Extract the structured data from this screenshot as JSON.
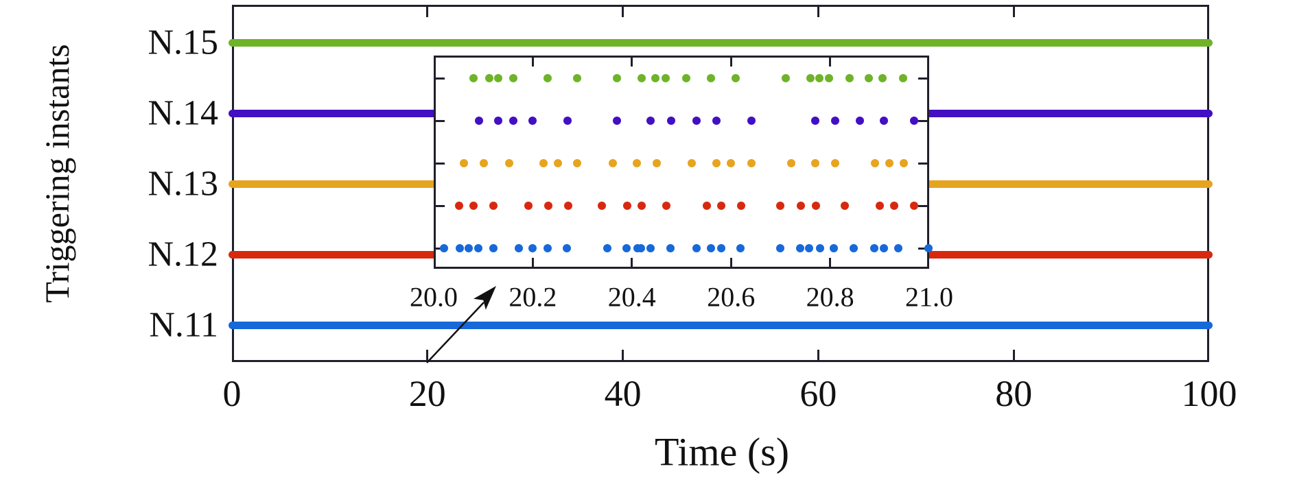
{
  "figure": {
    "background": "#ffffff",
    "axis_color": "#20202c",
    "text_color": "#111111"
  },
  "chart_data": {
    "type": "scatter",
    "title": "",
    "xlabel": "Time (s)",
    "ylabel": "Triggering instants",
    "x_range": [
      0,
      100
    ],
    "x_ticks": [
      0,
      20,
      40,
      60,
      80,
      100
    ],
    "x_tick_labels": [
      "0",
      "20",
      "40",
      "60",
      "80",
      "100"
    ],
    "y_categories": [
      "N.15",
      "N.14",
      "N.13",
      "N.12",
      "N.11"
    ],
    "grid": false,
    "legend": "none",
    "series": [
      {
        "name": "N.15",
        "color": "#6eb32a",
        "span_s": [
          0,
          100
        ],
        "appearance": "instants so dense they render as a solid line"
      },
      {
        "name": "N.14",
        "color": "#430fc3",
        "span_s": [
          0,
          100
        ],
        "appearance": "instants so dense they render as a solid line"
      },
      {
        "name": "N.13",
        "color": "#e7a41f",
        "span_s": [
          0,
          100
        ],
        "appearance": "instants so dense they render as a solid line"
      },
      {
        "name": "N.12",
        "color": "#d8290f",
        "span_s": [
          0,
          100
        ],
        "appearance": "instants so dense they render as a solid line"
      },
      {
        "name": "N.11",
        "color": "#1768d9",
        "span_s": [
          0,
          100
        ],
        "appearance": "instants so dense they render as a solid line"
      }
    ],
    "inset": {
      "x_range": [
        20.0,
        21.0
      ],
      "x_ticks": [
        20.0,
        20.2,
        20.4,
        20.6,
        20.8,
        21.0
      ],
      "x_tick_labels": [
        "20.0",
        "20.2",
        "20.4",
        "20.6",
        "20.8",
        "21.0"
      ],
      "series": [
        {
          "name": "N.15",
          "color": "#6eb32a",
          "instants_s": [
            20.08,
            20.112,
            20.13,
            20.16,
            20.23,
            20.29,
            20.37,
            20.42,
            20.447,
            20.468,
            20.51,
            20.56,
            20.609,
            20.711,
            20.761,
            20.779,
            20.798,
            20.839,
            20.878,
            20.906,
            20.948
          ]
        },
        {
          "name": "N.14",
          "color": "#430fc3",
          "instants_s": [
            20.091,
            20.13,
            20.16,
            20.2,
            20.27,
            20.37,
            20.438,
            20.479,
            20.53,
            20.57,
            20.641,
            20.77,
            20.81,
            20.86,
            20.909,
            20.97
          ]
        },
        {
          "name": "N.13",
          "color": "#e7a41f",
          "instants_s": [
            20.061,
            20.101,
            20.152,
            20.222,
            20.251,
            20.29,
            20.362,
            20.41,
            20.45,
            20.521,
            20.57,
            20.6,
            20.641,
            20.721,
            20.77,
            20.81,
            20.89,
            20.92,
            20.949
          ]
        },
        {
          "name": "N.12",
          "color": "#d8290f",
          "instants_s": [
            20.051,
            20.08,
            20.12,
            20.191,
            20.231,
            20.271,
            20.34,
            20.391,
            20.42,
            20.47,
            20.551,
            20.58,
            20.62,
            20.7,
            20.741,
            20.771,
            20.83,
            20.9,
            20.93,
            20.97
          ]
        },
        {
          "name": "N.11",
          "color": "#1768d9",
          "instants_s": [
            20.021,
            20.052,
            20.071,
            20.09,
            20.121,
            20.172,
            20.2,
            20.23,
            20.269,
            20.351,
            20.389,
            20.411,
            20.418,
            20.438,
            20.478,
            20.53,
            20.56,
            20.58,
            20.619,
            20.7,
            20.74,
            20.757,
            20.78,
            20.808,
            20.848,
            20.889,
            20.909,
            20.938,
            20.998
          ]
        }
      ]
    },
    "annotation": {
      "arrow_from": "x-axis tick at 20 s",
      "arrow_to": "magnified inset of window 20.0–21.0 s"
    }
  }
}
